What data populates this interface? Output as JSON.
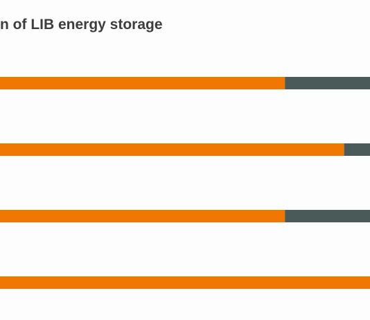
{
  "chart_data": {
    "type": "bar",
    "orientation": "horizontal",
    "stacked": true,
    "title": "n of LIB energy storage",
    "categories": [
      "",
      "",
      "",
      ""
    ],
    "series": [
      {
        "values": [
          77,
          93,
          77,
          100
        ]
      },
      {
        "values": [
          23,
          7,
          23,
          0
        ]
      }
    ],
    "xlim": [
      0,
      100
    ],
    "grid": false,
    "legend": "none"
  },
  "colors": {
    "series": [
      "#f07800",
      "#4a5a58"
    ],
    "title": "#3d3d3d",
    "background": "#fdfdfd"
  }
}
